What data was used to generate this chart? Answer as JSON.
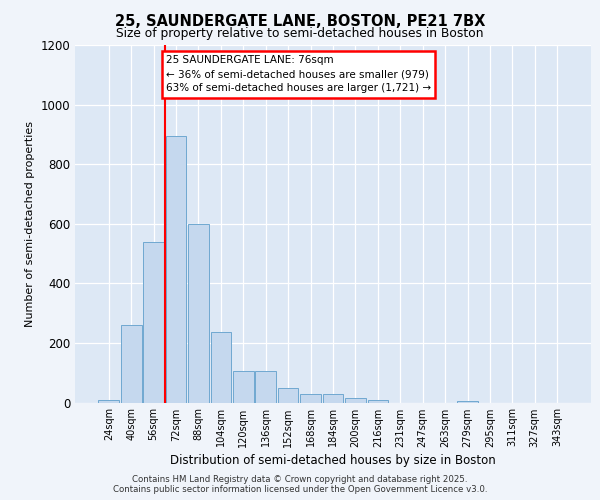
{
  "title_line1": "25, SAUNDERGATE LANE, BOSTON, PE21 7BX",
  "title_line2": "Size of property relative to semi-detached houses in Boston",
  "xlabel": "Distribution of semi-detached houses by size in Boston",
  "ylabel": "Number of semi-detached properties",
  "categories": [
    "24sqm",
    "40sqm",
    "56sqm",
    "72sqm",
    "88sqm",
    "104sqm",
    "120sqm",
    "136sqm",
    "152sqm",
    "168sqm",
    "184sqm",
    "200sqm",
    "216sqm",
    "231sqm",
    "247sqm",
    "263sqm",
    "279sqm",
    "295sqm",
    "311sqm",
    "327sqm",
    "343sqm"
  ],
  "values": [
    10,
    260,
    540,
    895,
    600,
    235,
    105,
    105,
    50,
    30,
    30,
    15,
    10,
    0,
    0,
    0,
    5,
    0,
    0,
    0,
    0
  ],
  "bar_color": "#c5d8ee",
  "bar_edge_color": "#6fa8d0",
  "vline_x_idx": 3,
  "vline_color": "red",
  "annotation_line1": "25 SAUNDERGATE LANE: 76sqm",
  "annotation_line2": "← 36% of semi-detached houses are smaller (979)",
  "annotation_line3": "63% of semi-detached houses are larger (1,721) →",
  "ylim": [
    0,
    1200
  ],
  "yticks": [
    0,
    200,
    400,
    600,
    800,
    1000,
    1200
  ],
  "footer_line1": "Contains HM Land Registry data © Crown copyright and database right 2025.",
  "footer_line2": "Contains public sector information licensed under the Open Government Licence v3.0.",
  "bg_color": "#dde8f5",
  "fig_color": "#f0f4fa"
}
